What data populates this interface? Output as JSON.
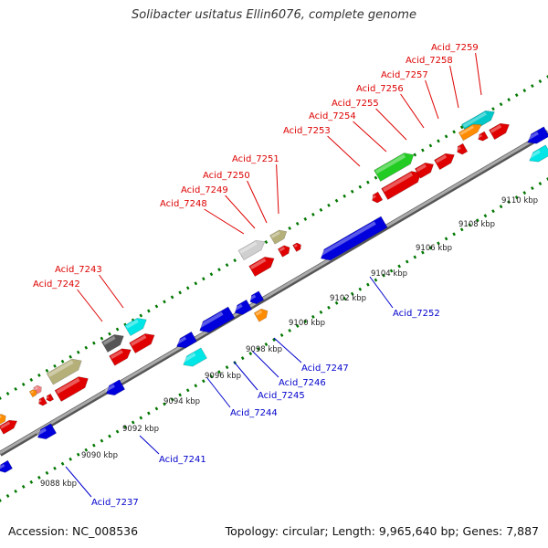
{
  "title": "Solibacter usitatus Ellin6076, complete genome",
  "footer": {
    "accession": "Accession: NC_008536",
    "summary": "Topology: circular; Length: 9,965,640 bp; Genes: 7,887"
  },
  "colors": {
    "label_top": "#dd0000",
    "label_bottom": "#0000cc",
    "backbone": "#888888",
    "tick": "#007700"
  },
  "kbp_ticks": [
    "9088 kbp",
    "9090 kbp",
    "9092 kbp",
    "9094 kbp",
    "9096 kbp",
    "9098 kbp",
    "9100 kbp",
    "9102 kbp",
    "9104 kbp",
    "9106 kbp",
    "9108 kbp",
    "9110 kbp"
  ],
  "top_labels": [
    "Acid_7242",
    "Acid_7243",
    "Acid_7248",
    "Acid_7249",
    "Acid_7250",
    "Acid_7251",
    "Acid_7253",
    "Acid_7254",
    "Acid_7255",
    "Acid_7256",
    "Acid_7257",
    "Acid_7258",
    "Acid_7259"
  ],
  "bottom_labels": [
    "Acid_7237",
    "Acid_7241",
    "Acid_7244",
    "Acid_7245",
    "Acid_7246",
    "Acid_7247",
    "Acid_7252"
  ]
}
